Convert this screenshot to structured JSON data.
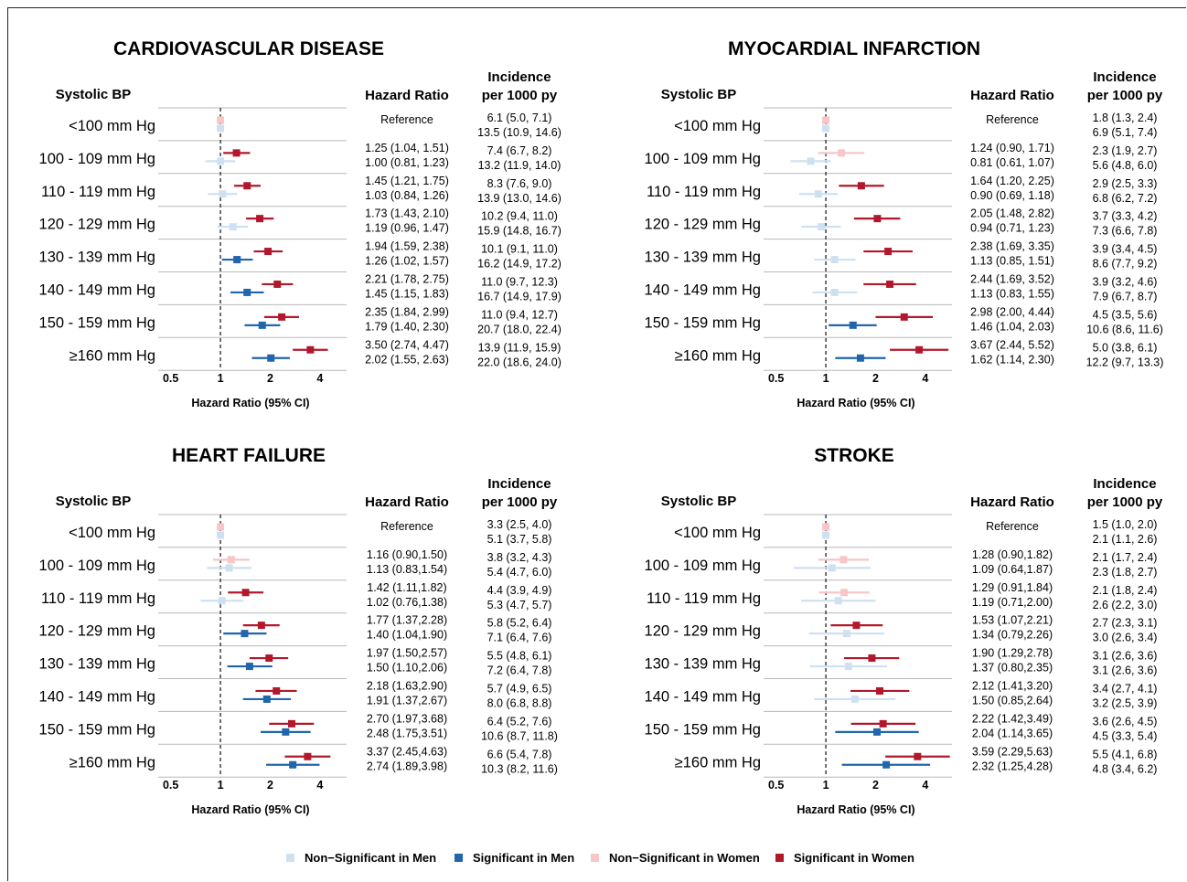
{
  "colors": {
    "ns_men": "#cfe1f1",
    "sig_men": "#2166ac",
    "ns_women": "#f6c6c8",
    "sig_women": "#b2182b"
  },
  "headers": {
    "systolic": "Systolic BP",
    "hazard": "Hazard Ratio",
    "incidence_line1": "Incidence",
    "incidence_line2": "per 1000 py",
    "xlabel": "Hazard Ratio (95% CI)"
  },
  "legend": [
    {
      "key": "ns_men",
      "label": "Non−Significant in Men"
    },
    {
      "key": "sig_men",
      "label": "Significant in Men"
    },
    {
      "key": "ns_women",
      "label": "Non−Significant in Women"
    },
    {
      "key": "sig_women",
      "label": "Significant in Women"
    }
  ],
  "chart_data": [
    {
      "type": "forest",
      "title": "CARDIOVASCULAR DISEASE",
      "xscale": "log",
      "xticks": [
        0.5,
        1,
        2,
        4
      ],
      "xticklabels": [
        "0.5",
        "1",
        "2",
        "4"
      ],
      "xlim": [
        0.42,
        5.8
      ],
      "categories": [
        "<100 mm Hg",
        "100 - 109 mm Hg",
        "110 - 119 mm Hg",
        "120 - 129 mm Hg",
        "130 - 139 mm Hg",
        "140 - 149 mm Hg",
        "150 - 159 mm Hg",
        "≥160 mm Hg"
      ],
      "rows": [
        {
          "hr_women": "Reference",
          "hr_men": "",
          "inc_women": "6.1 (5.0, 7.1)",
          "inc_men": "13.5 (10.9, 14.6)",
          "women": [
            1,
            1,
            1
          ],
          "men": [
            1,
            1,
            1
          ],
          "women_sig": false,
          "men_sig": false
        },
        {
          "hr_women": "1.25 (1.04, 1.51)",
          "hr_men": "1.00 (0.81, 1.23)",
          "inc_women": "7.4 (6.7, 8.2)",
          "inc_men": "13.2 (11.9, 14.0)",
          "women": [
            1.25,
            1.04,
            1.51
          ],
          "men": [
            1.0,
            0.81,
            1.23
          ],
          "women_sig": true,
          "men_sig": false
        },
        {
          "hr_women": "1.45 (1.21, 1.75)",
          "hr_men": "1.03 (0.84, 1.26)",
          "inc_women": "8.3 (7.6, 9.0)",
          "inc_men": "13.9 (13.0, 14.6)",
          "women": [
            1.45,
            1.21,
            1.75
          ],
          "men": [
            1.03,
            0.84,
            1.26
          ],
          "women_sig": true,
          "men_sig": false
        },
        {
          "hr_women": "1.73 (1.43, 2.10)",
          "hr_men": "1.19 (0.96, 1.47)",
          "inc_women": "10.2 (9.4, 11.0)",
          "inc_men": "15.9 (14.8, 16.7)",
          "women": [
            1.73,
            1.43,
            2.1
          ],
          "men": [
            1.19,
            0.96,
            1.47
          ],
          "women_sig": true,
          "men_sig": false
        },
        {
          "hr_women": "1.94 (1.59, 2.38)",
          "hr_men": "1.26 (1.02, 1.57)",
          "inc_women": "10.1 (9.1, 11.0)",
          "inc_men": "16.2 (14.9, 17.2)",
          "women": [
            1.94,
            1.59,
            2.38
          ],
          "men": [
            1.26,
            1.02,
            1.57
          ],
          "women_sig": true,
          "men_sig": true
        },
        {
          "hr_women": "2.21 (1.78, 2.75)",
          "hr_men": "1.45 (1.15, 1.83)",
          "inc_women": "11.0 (9.7, 12.3)",
          "inc_men": "16.7 (14.9, 17.9)",
          "women": [
            2.21,
            1.78,
            2.75
          ],
          "men": [
            1.45,
            1.15,
            1.83
          ],
          "women_sig": true,
          "men_sig": true
        },
        {
          "hr_women": "2.35 (1.84, 2.99)",
          "hr_men": "1.79 (1.40, 2.30)",
          "inc_women": "11.0 (9.4, 12.7)",
          "inc_men": "20.7 (18.0, 22.4)",
          "women": [
            2.35,
            1.84,
            2.99
          ],
          "men": [
            1.79,
            1.4,
            2.3
          ],
          "women_sig": true,
          "men_sig": true
        },
        {
          "hr_women": "3.50 (2.74, 4.47)",
          "hr_men": "2.02 (1.55, 2.63)",
          "inc_women": "13.9 (11.9, 15.9)",
          "inc_men": "22.0 (18.6, 24.0)",
          "women": [
            3.5,
            2.74,
            4.47
          ],
          "men": [
            2.02,
            1.55,
            2.63
          ],
          "women_sig": true,
          "men_sig": true
        }
      ]
    },
    {
      "type": "forest",
      "title": "MYOCARDIAL INFARCTION",
      "xscale": "log",
      "xticks": [
        0.5,
        1,
        2,
        4
      ],
      "xticklabels": [
        "0.5",
        "1",
        "2",
        "4"
      ],
      "xlim": [
        0.42,
        5.8
      ],
      "categories": [
        "<100 mm Hg",
        "100 - 109 mm Hg",
        "110 - 119 mm Hg",
        "120 - 129 mm Hg",
        "130 - 139 mm Hg",
        "140 - 149 mm Hg",
        "150 - 159 mm Hg",
        "≥160 mm Hg"
      ],
      "rows": [
        {
          "hr_women": "Reference",
          "hr_men": "",
          "inc_women": "1.8 (1.3, 2.4)",
          "inc_men": "6.9 (5.1, 7.4)",
          "women": [
            1,
            1,
            1
          ],
          "men": [
            1,
            1,
            1
          ],
          "women_sig": false,
          "men_sig": false
        },
        {
          "hr_women": "1.24 (0.90, 1.71)",
          "hr_men": "0.81 (0.61, 1.07)",
          "inc_women": "2.3 (1.9, 2.7)",
          "inc_men": "5.6 (4.8, 6.0)",
          "women": [
            1.24,
            0.9,
            1.71
          ],
          "men": [
            0.81,
            0.61,
            1.07
          ],
          "women_sig": false,
          "men_sig": false
        },
        {
          "hr_women": "1.64 (1.20, 2.25)",
          "hr_men": "0.90 (0.69, 1.18)",
          "inc_women": "2.9 (2.5, 3.3)",
          "inc_men": "6.8 (6.2, 7.2)",
          "women": [
            1.64,
            1.2,
            2.25
          ],
          "men": [
            0.9,
            0.69,
            1.18
          ],
          "women_sig": true,
          "men_sig": false
        },
        {
          "hr_women": "2.05 (1.48, 2.82)",
          "hr_men": "0.94 (0.71, 1.23)",
          "inc_women": "3.7 (3.3, 4.2)",
          "inc_men": "7.3 (6.6, 7.8)",
          "women": [
            2.05,
            1.48,
            2.82
          ],
          "men": [
            0.94,
            0.71,
            1.23
          ],
          "women_sig": true,
          "men_sig": false
        },
        {
          "hr_women": "2.38 (1.69, 3.35)",
          "hr_men": "1.13 (0.85, 1.51)",
          "inc_women": "3.9 (3.4, 4.5)",
          "inc_men": "8.6 (7.7, 9.2)",
          "women": [
            2.38,
            1.69,
            3.35
          ],
          "men": [
            1.13,
            0.85,
            1.51
          ],
          "women_sig": true,
          "men_sig": false
        },
        {
          "hr_women": "2.44 (1.69, 3.52)",
          "hr_men": "1.13 (0.83, 1.55)",
          "inc_women": "3.9 (3.2, 4.6)",
          "inc_men": "7.9 (6.7, 8.7)",
          "women": [
            2.44,
            1.69,
            3.52
          ],
          "men": [
            1.13,
            0.83,
            1.55
          ],
          "women_sig": true,
          "men_sig": false
        },
        {
          "hr_women": "2.98 (2.00, 4.44)",
          "hr_men": "1.46 (1.04, 2.03)",
          "inc_women": "4.5 (3.5, 5.6)",
          "inc_men": "10.6 (8.6, 11.6)",
          "women": [
            2.98,
            2.0,
            4.44
          ],
          "men": [
            1.46,
            1.04,
            2.03
          ],
          "women_sig": true,
          "men_sig": true
        },
        {
          "hr_women": "3.67 (2.44, 5.52)",
          "hr_men": "1.62 (1.14, 2.30)",
          "inc_women": "5.0 (3.8, 6.1)",
          "inc_men": "12.2 (9.7, 13.3)",
          "women": [
            3.67,
            2.44,
            5.52
          ],
          "men": [
            1.62,
            1.14,
            2.3
          ],
          "women_sig": true,
          "men_sig": true
        }
      ]
    },
    {
      "type": "forest",
      "title": "HEART FAILURE",
      "xscale": "log",
      "xticks": [
        0.5,
        1,
        2,
        4
      ],
      "xticklabels": [
        "0.5",
        "1",
        "2",
        "4"
      ],
      "xlim": [
        0.42,
        5.8
      ],
      "categories": [
        "<100 mm Hg",
        "100 - 109 mm Hg",
        "110 - 119 mm Hg",
        "120 - 129 mm Hg",
        "130 - 139 mm Hg",
        "140 - 149 mm Hg",
        "150 - 159 mm Hg",
        "≥160 mm Hg"
      ],
      "rows": [
        {
          "hr_women": "Reference",
          "hr_men": "",
          "inc_women": "3.3 (2.5, 4.0)",
          "inc_men": "5.1 (3.7, 5.8)",
          "women": [
            1,
            1,
            1
          ],
          "men": [
            1,
            1,
            1
          ],
          "women_sig": false,
          "men_sig": false
        },
        {
          "hr_women": "1.16 (0.90,1.50)",
          "hr_men": "1.13 (0.83,1.54)",
          "inc_women": "3.8 (3.2, 4.3)",
          "inc_men": "5.4 (4.7, 6.0)",
          "women": [
            1.16,
            0.9,
            1.5
          ],
          "men": [
            1.13,
            0.83,
            1.54
          ],
          "women_sig": false,
          "men_sig": false
        },
        {
          "hr_women": "1.42 (1.11,1.82)",
          "hr_men": "1.02 (0.76,1.38)",
          "inc_women": "4.4 (3.9, 4.9)",
          "inc_men": "5.3 (4.7, 5.7)",
          "women": [
            1.42,
            1.11,
            1.82
          ],
          "men": [
            1.02,
            0.76,
            1.38
          ],
          "women_sig": true,
          "men_sig": false
        },
        {
          "hr_women": "1.77 (1.37,2.28)",
          "hr_men": "1.40 (1.04,1.90)",
          "inc_women": "5.8 (5.2, 6.4)",
          "inc_men": "7.1 (6.4, 7.6)",
          "women": [
            1.77,
            1.37,
            2.28
          ],
          "men": [
            1.4,
            1.04,
            1.9
          ],
          "women_sig": true,
          "men_sig": true
        },
        {
          "hr_women": "1.97 (1.50,2.57)",
          "hr_men": "1.50 (1.10,2.06)",
          "inc_women": "5.5 (4.8, 6.1)",
          "inc_men": "7.2 (6.4, 7.8)",
          "women": [
            1.97,
            1.5,
            2.57
          ],
          "men": [
            1.5,
            1.1,
            2.06
          ],
          "women_sig": true,
          "men_sig": true
        },
        {
          "hr_women": "2.18 (1.63,2.90)",
          "hr_men": "1.91 (1.37,2.67)",
          "inc_women": "5.7 (4.9, 6.5)",
          "inc_men": "8.0 (6.8, 8.8)",
          "women": [
            2.18,
            1.63,
            2.9
          ],
          "men": [
            1.91,
            1.37,
            2.67
          ],
          "women_sig": true,
          "men_sig": true
        },
        {
          "hr_women": "2.70 (1.97,3.68)",
          "hr_men": "2.48 (1.75,3.51)",
          "inc_women": "6.4 (5.2, 7.6)",
          "inc_men": "10.6 (8.7, 11.8)",
          "women": [
            2.7,
            1.97,
            3.68
          ],
          "men": [
            2.48,
            1.75,
            3.51
          ],
          "women_sig": true,
          "men_sig": true
        },
        {
          "hr_women": "3.37 (2.45,4.63)",
          "hr_men": "2.74 (1.89,3.98)",
          "inc_women": "6.6 (5.4, 7.8)",
          "inc_men": "10.3 (8.2, 11.6)",
          "women": [
            3.37,
            2.45,
            4.63
          ],
          "men": [
            2.74,
            1.89,
            3.98
          ],
          "women_sig": true,
          "men_sig": true
        }
      ]
    },
    {
      "type": "forest",
      "title": "STROKE",
      "xscale": "log",
      "xticks": [
        0.5,
        1,
        2,
        4
      ],
      "xticklabels": [
        "0.5",
        "1",
        "2",
        "4"
      ],
      "xlim": [
        0.42,
        5.8
      ],
      "categories": [
        "<100 mm Hg",
        "100 - 109 mm Hg",
        "110 - 119 mm Hg",
        "120 - 129 mm Hg",
        "130 - 139 mm Hg",
        "140 - 149 mm Hg",
        "150 - 159 mm Hg",
        "≥160 mm Hg"
      ],
      "rows": [
        {
          "hr_women": "Reference",
          "hr_men": "",
          "inc_women": "1.5 (1.0, 2.0)",
          "inc_men": "2.1 (1.1, 2.6)",
          "women": [
            1,
            1,
            1
          ],
          "men": [
            1,
            1,
            1
          ],
          "women_sig": false,
          "men_sig": false
        },
        {
          "hr_women": "1.28 (0.90,1.82)",
          "hr_men": "1.09 (0.64,1.87)",
          "inc_women": "2.1 (1.7, 2.4)",
          "inc_men": "2.3 (1.8, 2.7)",
          "women": [
            1.28,
            0.9,
            1.82
          ],
          "men": [
            1.09,
            0.64,
            1.87
          ],
          "women_sig": false,
          "men_sig": false
        },
        {
          "hr_women": "1.29 (0.91,1.84)",
          "hr_men": "1.19 (0.71,2.00)",
          "inc_women": "2.1 (1.8, 2.4)",
          "inc_men": "2.6 (2.2, 3.0)",
          "women": [
            1.29,
            0.91,
            1.84
          ],
          "men": [
            1.19,
            0.71,
            2.0
          ],
          "women_sig": false,
          "men_sig": false
        },
        {
          "hr_women": "1.53 (1.07,2.21)",
          "hr_men": "1.34 (0.79,2.26)",
          "inc_women": "2.7 (2.3, 3.1)",
          "inc_men": "3.0 (2.6, 3.4)",
          "women": [
            1.53,
            1.07,
            2.21
          ],
          "men": [
            1.34,
            0.79,
            2.26
          ],
          "women_sig": true,
          "men_sig": false
        },
        {
          "hr_women": "1.90 (1.29,2.78)",
          "hr_men": "1.37 (0.80,2.35)",
          "inc_women": "3.1 (2.6, 3.6)",
          "inc_men": "3.1 (2.6, 3.6)",
          "women": [
            1.9,
            1.29,
            2.78
          ],
          "men": [
            1.37,
            0.8,
            2.35
          ],
          "women_sig": true,
          "men_sig": false
        },
        {
          "hr_women": "2.12 (1.41,3.20)",
          "hr_men": "1.50 (0.85,2.64)",
          "inc_women": "3.4 (2.7, 4.1)",
          "inc_men": "3.2 (2.5, 3.9)",
          "women": [
            2.12,
            1.41,
            3.2
          ],
          "men": [
            1.5,
            0.85,
            2.64
          ],
          "women_sig": true,
          "men_sig": false
        },
        {
          "hr_women": "2.22 (1.42,3.49)",
          "hr_men": "2.04 (1.14,3.65)",
          "inc_women": "3.6 (2.6, 4.5)",
          "inc_men": "4.5 (3.3, 5.4)",
          "women": [
            2.22,
            1.42,
            3.49
          ],
          "men": [
            2.04,
            1.14,
            3.65
          ],
          "women_sig": true,
          "men_sig": true
        },
        {
          "hr_women": "3.59 (2.29,5.63)",
          "hr_men": "2.32 (1.25,4.28)",
          "inc_women": "5.5 (4.1, 6.8)",
          "inc_men": "4.8 (3.4, 6.2)",
          "women": [
            3.59,
            2.29,
            5.63
          ],
          "men": [
            2.32,
            1.25,
            4.28
          ],
          "women_sig": true,
          "men_sig": true
        }
      ]
    }
  ]
}
